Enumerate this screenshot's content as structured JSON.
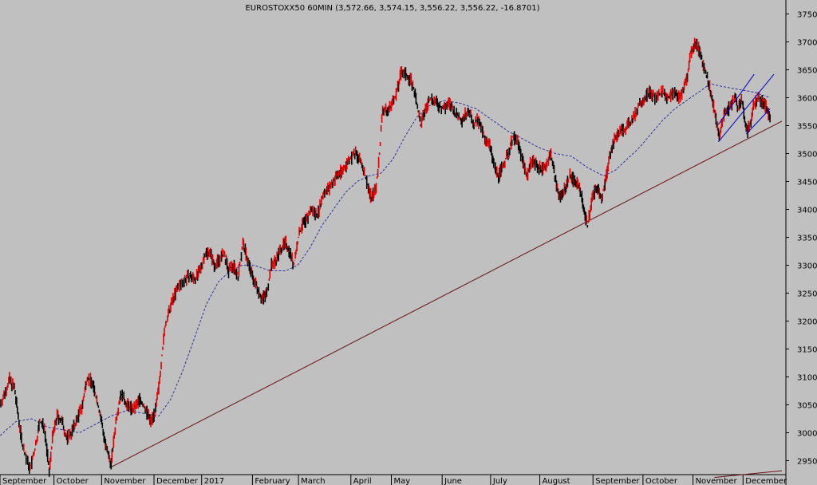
{
  "chart_data": {
    "type": "line",
    "title": "EUROSTOXX50 60MIN (3,572.66, 3,574.15, 3,556.22, 3,556.22, -16.8701)",
    "xlabel": "",
    "ylabel": "",
    "ylim": [
      2925,
      3775
    ],
    "xlim": [
      0,
      990
    ],
    "grid": false,
    "background": "#c0c0c0",
    "colors": {
      "bar_down": "#000000",
      "bar_up": "#e00000",
      "moving_average": "#3030a0",
      "trendline": "#6a1010",
      "channel": "#0000d0"
    },
    "y_ticks": [
      2950,
      3000,
      3050,
      3100,
      3150,
      3200,
      3250,
      3300,
      3350,
      3400,
      3450,
      3500,
      3550,
      3600,
      3650,
      3700,
      3750
    ],
    "x_ticks": [
      {
        "label": "September",
        "x": 0
      },
      {
        "label": "October",
        "x": 68
      },
      {
        "label": "November",
        "x": 128
      },
      {
        "label": "December",
        "x": 194
      },
      {
        "label": "2017",
        "x": 254
      },
      {
        "label": "February",
        "x": 318
      },
      {
        "label": "March",
        "x": 376
      },
      {
        "label": "April",
        "x": 442
      },
      {
        "label": "May",
        "x": 493
      },
      {
        "label": "June",
        "x": 557
      },
      {
        "label": "July",
        "x": 618
      },
      {
        "label": "August",
        "x": 680
      },
      {
        "label": "September",
        "x": 747
      },
      {
        "label": "October",
        "x": 810
      },
      {
        "label": "November",
        "x": 873
      },
      {
        "label": "December",
        "x": 936
      }
    ],
    "series": [
      {
        "values": [
          [
            0,
            3050
          ],
          [
            6,
            3070
          ],
          [
            12,
            3095
          ],
          [
            18,
            3080
          ],
          [
            22,
            3040
          ],
          [
            28,
            2980
          ],
          [
            34,
            2950
          ],
          [
            38,
            2935
          ],
          [
            44,
            2970
          ],
          [
            50,
            3020
          ],
          [
            56,
            3010
          ],
          [
            62,
            2930
          ],
          [
            66,
            2990
          ],
          [
            72,
            3030
          ],
          [
            78,
            3020
          ],
          [
            84,
            2990
          ],
          [
            90,
            3000
          ],
          [
            96,
            3020
          ],
          [
            104,
            3050
          ],
          [
            110,
            3100
          ],
          [
            116,
            3090
          ],
          [
            122,
            3060
          ],
          [
            128,
            3020
          ],
          [
            134,
            2970
          ],
          [
            140,
            2945
          ],
          [
            146,
            3020
          ],
          [
            152,
            3070
          ],
          [
            160,
            3050
          ],
          [
            168,
            3040
          ],
          [
            176,
            3060
          ],
          [
            184,
            3040
          ],
          [
            190,
            3020
          ],
          [
            196,
            3040
          ],
          [
            200,
            3080
          ],
          [
            204,
            3140
          ],
          [
            208,
            3190
          ],
          [
            212,
            3210
          ],
          [
            218,
            3240
          ],
          [
            224,
            3260
          ],
          [
            230,
            3270
          ],
          [
            238,
            3280
          ],
          [
            246,
            3275
          ],
          [
            252,
            3290
          ],
          [
            258,
            3320
          ],
          [
            264,
            3325
          ],
          [
            270,
            3300
          ],
          [
            276,
            3310
          ],
          [
            282,
            3320
          ],
          [
            288,
            3290
          ],
          [
            294,
            3300
          ],
          [
            300,
            3280
          ],
          [
            306,
            3340
          ],
          [
            312,
            3310
          ],
          [
            318,
            3280
          ],
          [
            324,
            3260
          ],
          [
            330,
            3240
          ],
          [
            336,
            3250
          ],
          [
            342,
            3300
          ],
          [
            348,
            3310
          ],
          [
            354,
            3330
          ],
          [
            360,
            3340
          ],
          [
            366,
            3320
          ],
          [
            370,
            3300
          ],
          [
            376,
            3350
          ],
          [
            380,
            3370
          ],
          [
            386,
            3380
          ],
          [
            392,
            3400
          ],
          [
            400,
            3390
          ],
          [
            408,
            3430
          ],
          [
            416,
            3440
          ],
          [
            424,
            3460
          ],
          [
            432,
            3470
          ],
          [
            440,
            3490
          ],
          [
            448,
            3500
          ],
          [
            456,
            3480
          ],
          [
            462,
            3450
          ],
          [
            468,
            3420
          ],
          [
            474,
            3440
          ],
          [
            478,
            3500
          ],
          [
            482,
            3580
          ],
          [
            488,
            3575
          ],
          [
            494,
            3590
          ],
          [
            500,
            3610
          ],
          [
            506,
            3650
          ],
          [
            512,
            3640
          ],
          [
            518,
            3630
          ],
          [
            524,
            3600
          ],
          [
            530,
            3550
          ],
          [
            536,
            3580
          ],
          [
            542,
            3600
          ],
          [
            550,
            3590
          ],
          [
            558,
            3580
          ],
          [
            566,
            3590
          ],
          [
            574,
            3570
          ],
          [
            582,
            3560
          ],
          [
            590,
            3580
          ],
          [
            596,
            3550
          ],
          [
            602,
            3560
          ],
          [
            610,
            3530
          ],
          [
            616,
            3520
          ],
          [
            622,
            3480
          ],
          [
            628,
            3460
          ],
          [
            634,
            3480
          ],
          [
            640,
            3500
          ],
          [
            646,
            3530
          ],
          [
            652,
            3520
          ],
          [
            658,
            3490
          ],
          [
            664,
            3460
          ],
          [
            670,
            3490
          ],
          [
            676,
            3480
          ],
          [
            682,
            3470
          ],
          [
            688,
            3480
          ],
          [
            694,
            3500
          ],
          [
            700,
            3450
          ],
          [
            706,
            3420
          ],
          [
            712,
            3440
          ],
          [
            718,
            3460
          ],
          [
            724,
            3450
          ],
          [
            730,
            3440
          ],
          [
            736,
            3400
          ],
          [
            740,
            3370
          ],
          [
            746,
            3420
          ],
          [
            752,
            3440
          ],
          [
            758,
            3420
          ],
          [
            764,
            3460
          ],
          [
            770,
            3510
          ],
          [
            776,
            3530
          ],
          [
            782,
            3540
          ],
          [
            788,
            3545
          ],
          [
            794,
            3555
          ],
          [
            800,
            3570
          ],
          [
            806,
            3590
          ],
          [
            812,
            3600
          ],
          [
            818,
            3610
          ],
          [
            826,
            3600
          ],
          [
            834,
            3610
          ],
          [
            842,
            3600
          ],
          [
            850,
            3610
          ],
          [
            856,
            3600
          ],
          [
            862,
            3620
          ],
          [
            866,
            3640
          ],
          [
            870,
            3680
          ],
          [
            876,
            3700
          ],
          [
            882,
            3680
          ],
          [
            888,
            3650
          ],
          [
            894,
            3620
          ],
          [
            898,
            3590
          ],
          [
            902,
            3560
          ],
          [
            906,
            3530
          ],
          [
            910,
            3560
          ],
          [
            914,
            3575
          ],
          [
            918,
            3580
          ],
          [
            922,
            3590
          ],
          [
            926,
            3600
          ],
          [
            930,
            3580
          ],
          [
            934,
            3600
          ],
          [
            938,
            3560
          ],
          [
            942,
            3540
          ],
          [
            946,
            3560
          ],
          [
            950,
            3590
          ],
          [
            956,
            3600
          ],
          [
            962,
            3590
          ],
          [
            966,
            3580
          ],
          [
            970,
            3565
          ]
        ]
      },
      {
        "values": [
          [
            0,
            2995
          ],
          [
            20,
            3020
          ],
          [
            40,
            3025
          ],
          [
            60,
            3010
          ],
          [
            80,
            3005
          ],
          [
            100,
            3000
          ],
          [
            120,
            3015
          ],
          [
            140,
            3030
          ],
          [
            160,
            3040
          ],
          [
            180,
            3035
          ],
          [
            200,
            3030
          ],
          [
            215,
            3060
          ],
          [
            230,
            3110
          ],
          [
            245,
            3170
          ],
          [
            260,
            3230
          ],
          [
            275,
            3270
          ],
          [
            290,
            3290
          ],
          [
            305,
            3300
          ],
          [
            320,
            3300
          ],
          [
            340,
            3290
          ],
          [
            360,
            3290
          ],
          [
            375,
            3300
          ],
          [
            390,
            3330
          ],
          [
            405,
            3370
          ],
          [
            420,
            3400
          ],
          [
            435,
            3430
          ],
          [
            450,
            3450
          ],
          [
            465,
            3460
          ],
          [
            480,
            3465
          ],
          [
            495,
            3490
          ],
          [
            510,
            3530
          ],
          [
            525,
            3565
          ],
          [
            540,
            3585
          ],
          [
            560,
            3595
          ],
          [
            580,
            3590
          ],
          [
            600,
            3580
          ],
          [
            620,
            3560
          ],
          [
            640,
            3540
          ],
          [
            660,
            3525
          ],
          [
            680,
            3510
          ],
          [
            700,
            3500
          ],
          [
            720,
            3495
          ],
          [
            740,
            3475
          ],
          [
            760,
            3460
          ],
          [
            775,
            3470
          ],
          [
            790,
            3490
          ],
          [
            805,
            3510
          ],
          [
            820,
            3535
          ],
          [
            835,
            3560
          ],
          [
            850,
            3580
          ],
          [
            865,
            3595
          ],
          [
            880,
            3610
          ],
          [
            895,
            3625
          ],
          [
            910,
            3620
          ],
          [
            930,
            3615
          ],
          [
            950,
            3610
          ],
          [
            970,
            3600
          ]
        ]
      }
    ],
    "trendline": [
      [
        138,
        2937
      ],
      [
        985,
        3558
      ]
    ],
    "trendline2": [
      [
        900,
        2920
      ],
      [
        985,
        2932
      ]
    ],
    "channel_lines": [
      [
        [
          905,
          3521
        ],
        [
          975,
          3642
        ]
      ],
      [
        [
          905,
          3552
        ],
        [
          950,
          3642
        ]
      ],
      [
        [
          940,
          3535
        ],
        [
          970,
          3580
        ]
      ]
    ]
  }
}
